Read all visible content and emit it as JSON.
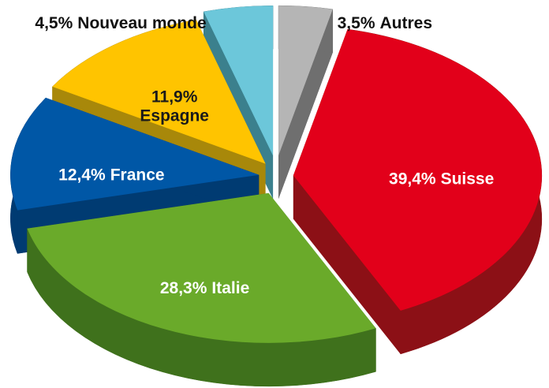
{
  "chart_data": {
    "type": "pie3d",
    "categories": [
      "Autres",
      "Suisse",
      "Italie",
      "France",
      "Espagne",
      "Nouveau monde"
    ],
    "values": [
      3.5,
      39.4,
      28.3,
      12.4,
      11.9,
      4.5
    ],
    "value_labels": [
      "3,5%",
      "39,4%",
      "28,3%",
      "12,4%",
      "11,9%",
      "4,5%"
    ],
    "colors": [
      "#b5b5b5",
      "#e2001a",
      "#6aaa2a",
      "#0057a6",
      "#ffc400",
      "#6cc7da"
    ],
    "side_colors": [
      "#6f6f6f",
      "#8c1016",
      "#3f711c",
      "#003b72",
      "#a8880a",
      "#3b808d"
    ]
  }
}
